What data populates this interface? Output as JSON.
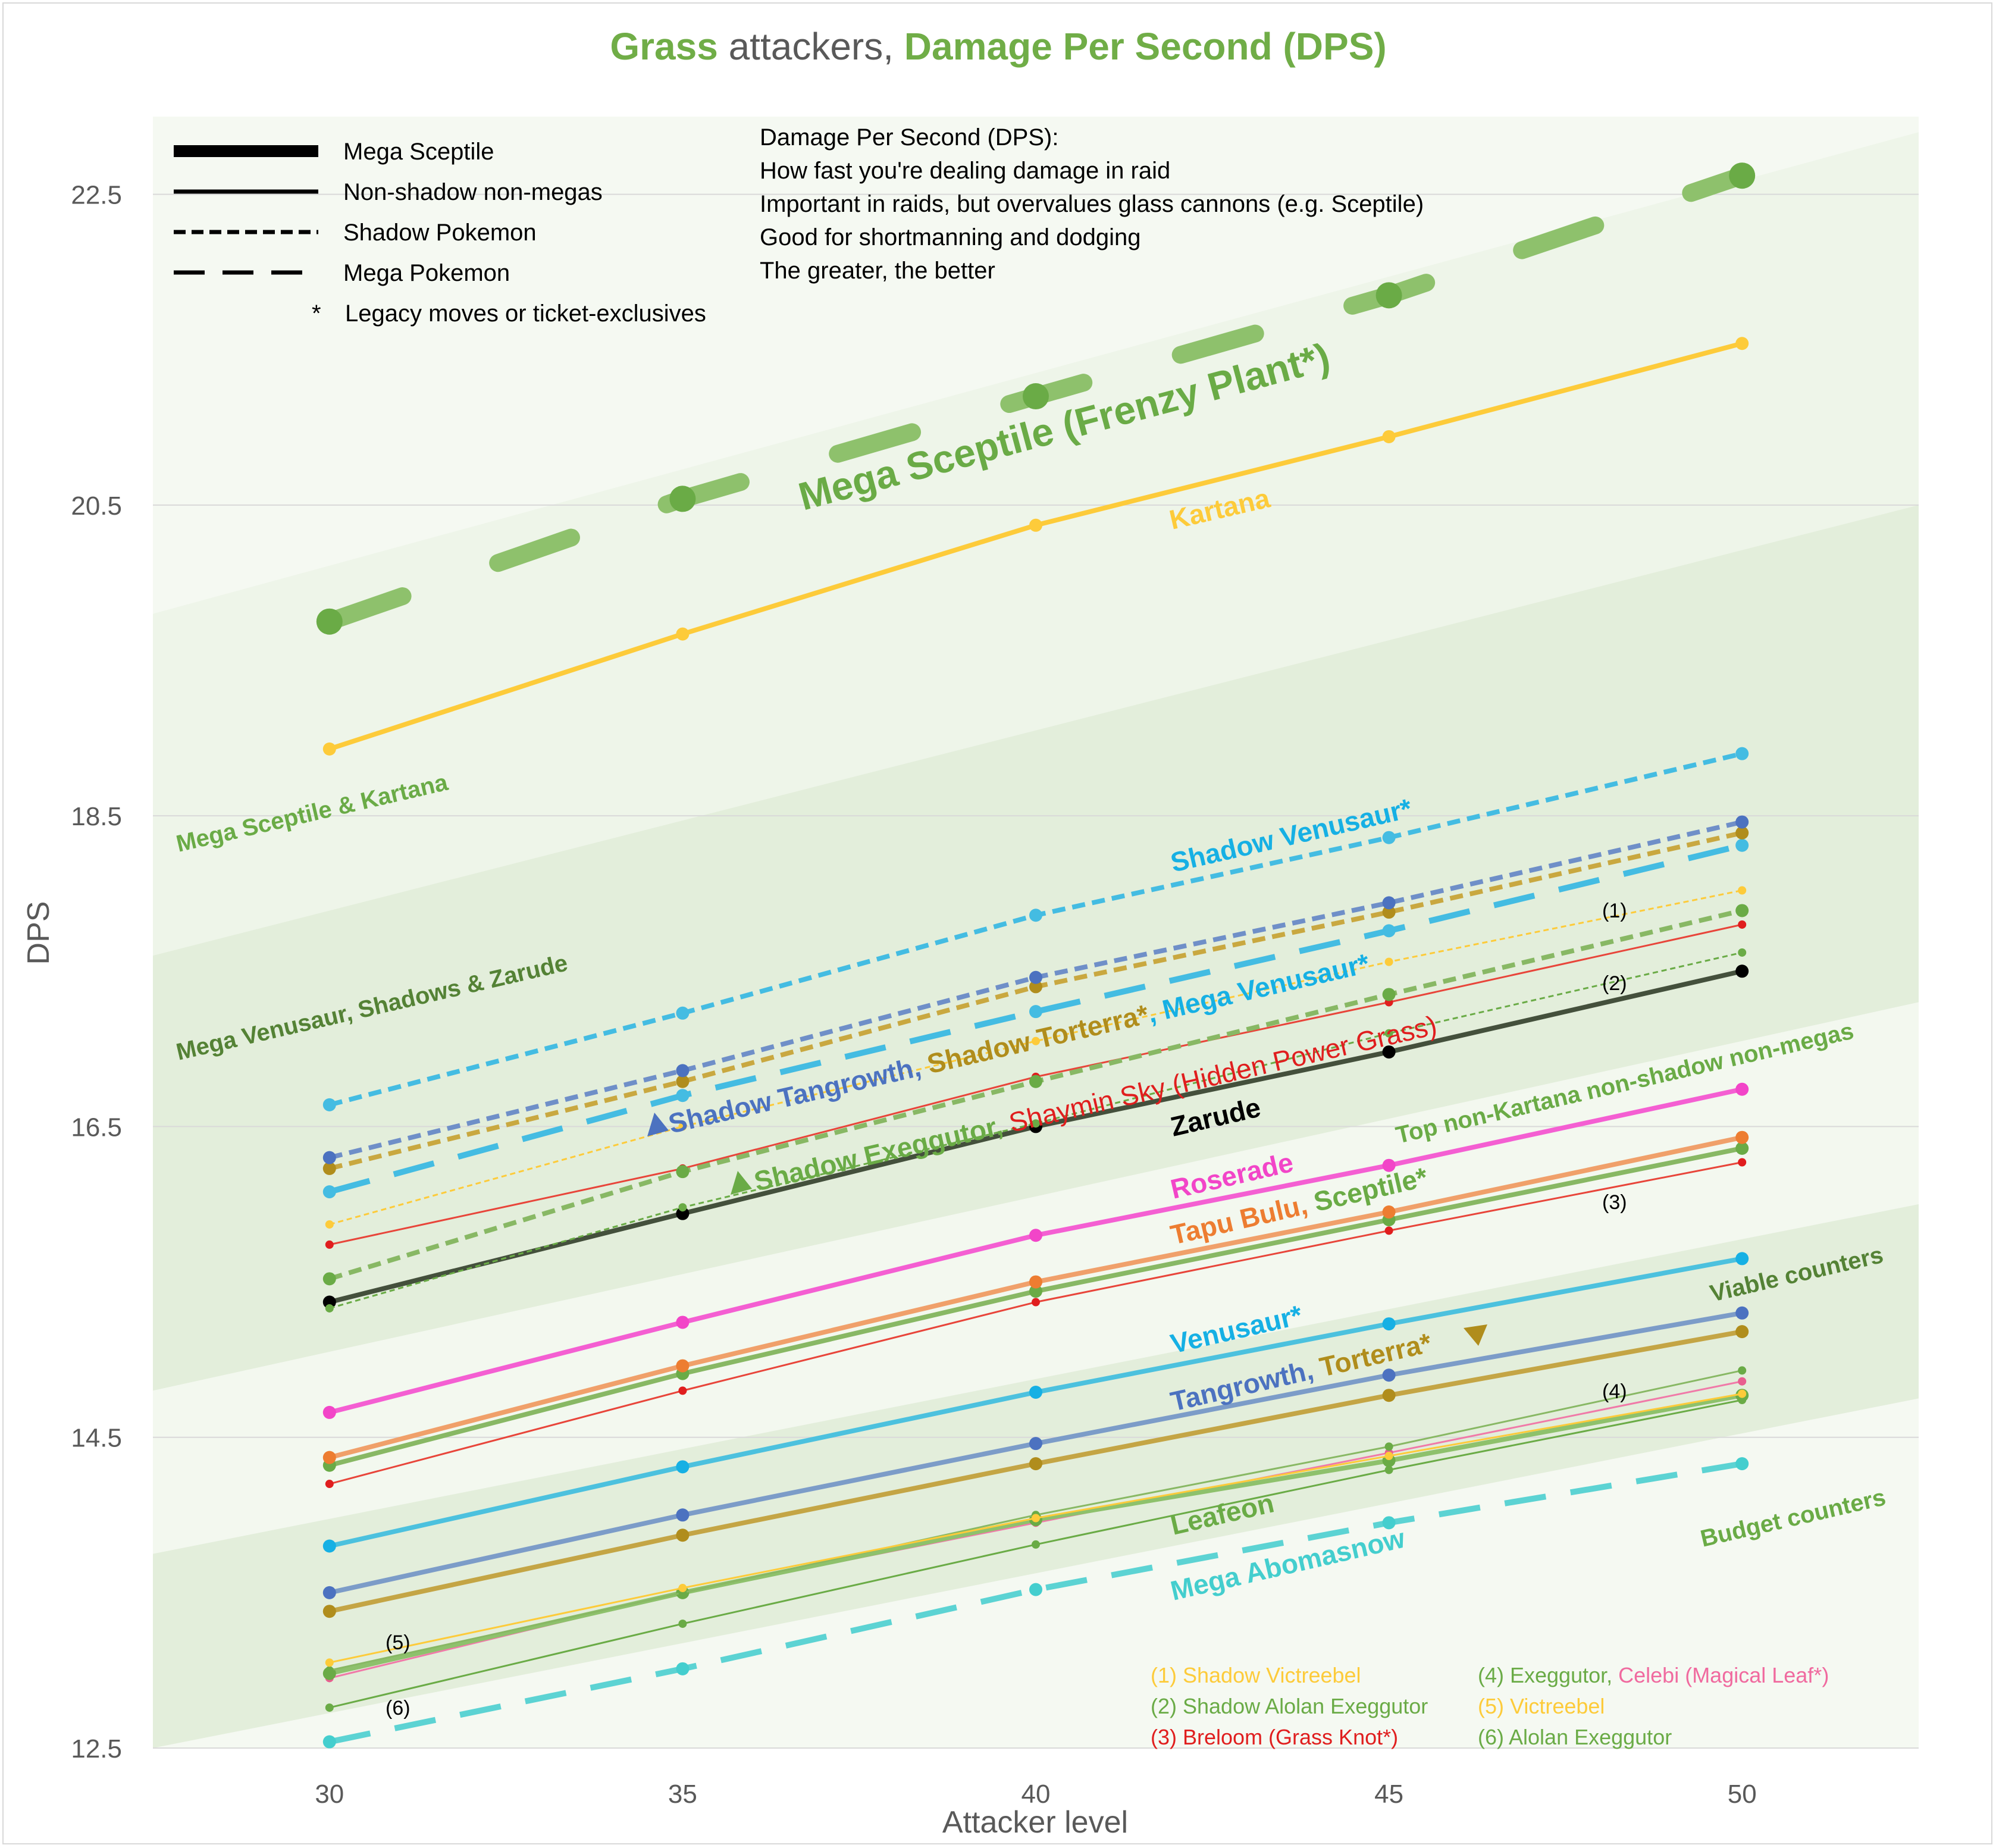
{
  "chart_data": {
    "type": "line",
    "title": {
      "part1": "Grass",
      "part2": " attackers, ",
      "part3": "Damage Per Second (DPS)"
    },
    "xlabel": "Attacker level",
    "ylabel": "DPS",
    "x": [
      30,
      35,
      40,
      45,
      50
    ],
    "xticks": [
      "30",
      "35",
      "40",
      "45",
      "50"
    ],
    "xlim": [
      27.5,
      52.5
    ],
    "ylim": [
      12.5,
      23.0
    ],
    "yticks": [
      "12.5",
      "14.5",
      "16.5",
      "18.5",
      "20.5",
      "22.5"
    ],
    "ytick_values": [
      12.5,
      14.5,
      16.5,
      18.5,
      20.5,
      22.5
    ],
    "bands": [
      {
        "name": "Mega Sceptile & Kartana",
        "poly": [
          [
            27.5,
            19.8
          ],
          [
            52.5,
            22.9
          ],
          [
            52.5,
            20.5
          ],
          [
            27.5,
            17.6
          ]
        ],
        "color": "#eef5e9"
      },
      {
        "name": "Mega Venusaur, Shadows & Zarude",
        "poly": [
          [
            27.5,
            17.6
          ],
          [
            52.5,
            20.5
          ],
          [
            52.5,
            17.3
          ],
          [
            27.5,
            14.8
          ]
        ],
        "color": "#e3eedb"
      },
      {
        "name": "Top non-Kartana non-shadow non-megas",
        "poly": [
          [
            27.5,
            14.8
          ],
          [
            52.5,
            17.3
          ],
          [
            52.5,
            16.0
          ],
          [
            27.5,
            13.75
          ]
        ],
        "color": "#f3f8ef"
      },
      {
        "name": "Viable counters",
        "poly": [
          [
            27.5,
            13.75
          ],
          [
            52.5,
            16.0
          ],
          [
            52.5,
            14.75
          ],
          [
            27.5,
            12.5
          ]
        ],
        "color": "#e3eedb"
      }
    ],
    "series": [
      {
        "name": "Mega Sceptile (Frenzy Plant*)",
        "values": [
          19.75,
          20.54,
          21.2,
          21.85,
          22.62
        ],
        "color": "#8ec16c",
        "dotColor": "#6aab46",
        "style": "megathick"
      },
      {
        "name": "Kartana",
        "values": [
          18.93,
          19.67,
          20.37,
          20.94,
          21.54
        ],
        "color": "#fdcb3a",
        "style": "solid"
      },
      {
        "name": "Shadow Venusaur*",
        "values": [
          16.64,
          17.23,
          17.86,
          18.36,
          18.9
        ],
        "color": "#44bce2",
        "style": "short"
      },
      {
        "name": "Shadow Tangrowth",
        "values": [
          16.3,
          16.86,
          17.46,
          17.94,
          18.46
        ],
        "color": "#6f8fc8",
        "dotColor": "#4c72c0",
        "style": "short"
      },
      {
        "name": "Shadow Torterra*",
        "values": [
          16.23,
          16.79,
          17.4,
          17.88,
          18.39
        ],
        "color": "#c9a840",
        "dotColor": "#b08d1c",
        "style": "short"
      },
      {
        "name": "Mega Venusaur*",
        "values": [
          16.08,
          16.7,
          17.24,
          17.76,
          18.31
        ],
        "color": "#44bce2",
        "style": "mega"
      },
      {
        "name": "Shadow Victreebel",
        "values": [
          15.87,
          16.5,
          17.05,
          17.56,
          18.02
        ],
        "color": "#fdcb3a",
        "style": "thinshort"
      },
      {
        "name": "Shadow Exeggutor",
        "values": [
          15.52,
          16.21,
          16.79,
          17.35,
          17.89
        ],
        "color": "#88b864",
        "dotColor": "#6aab46",
        "style": "short"
      },
      {
        "name": "Shaymin Sky (Hidden Power Grass)",
        "values": [
          15.74,
          16.23,
          16.82,
          17.3,
          17.8
        ],
        "color": "#e8453a",
        "dotColor": "#e01e1e",
        "style": "thin"
      },
      {
        "name": "Shadow Alolan Exeggutor",
        "values": [
          15.33,
          15.98,
          16.52,
          17.1,
          17.62
        ],
        "color": "#6aab46",
        "style": "thinshort"
      },
      {
        "name": "Zarude",
        "values": [
          15.37,
          15.94,
          16.5,
          16.98,
          17.5
        ],
        "color": "#44503c",
        "dotColor": "#000000",
        "style": "solid"
      },
      {
        "name": "Roserade",
        "values": [
          14.66,
          15.24,
          15.8,
          16.25,
          16.74
        ],
        "color": "#f45fd2",
        "dotColor": "#f245c8",
        "style": "solid"
      },
      {
        "name": "Tapu Bulu",
        "values": [
          14.37,
          14.96,
          15.5,
          15.95,
          16.43
        ],
        "color": "#f0a06a",
        "dotColor": "#ed7d31",
        "style": "solid"
      },
      {
        "name": "Sceptile*",
        "values": [
          14.32,
          14.91,
          15.44,
          15.9,
          16.36
        ],
        "color": "#88b864",
        "dotColor": "#6aab46",
        "style": "solid"
      },
      {
        "name": "Breloom (Grass Knot*)",
        "values": [
          14.2,
          14.8,
          15.37,
          15.83,
          16.27
        ],
        "color": "#e8453a",
        "dotColor": "#e01e1e",
        "style": "thin"
      },
      {
        "name": "Venusaur*",
        "values": [
          13.8,
          14.31,
          14.79,
          15.23,
          15.65
        ],
        "color": "#4cc1de",
        "dotColor": "#16b0e4",
        "style": "solid"
      },
      {
        "name": "Tangrowth",
        "values": [
          13.5,
          14.0,
          14.46,
          14.9,
          15.3
        ],
        "color": "#7c9cc8",
        "dotColor": "#4c72c0",
        "style": "solid"
      },
      {
        "name": "Torterra*",
        "values": [
          13.38,
          13.87,
          14.33,
          14.77,
          15.18
        ],
        "color": "#c4a545",
        "dotColor": "#b08d1c",
        "style": "solid"
      },
      {
        "name": "Victreebel",
        "values": [
          13.05,
          13.53,
          13.98,
          14.38,
          14.78
        ],
        "color": "#fdcb3a",
        "style": "thin"
      },
      {
        "name": "Exeggutor",
        "values": [
          13.0,
          13.5,
          14.0,
          14.44,
          14.93
        ],
        "color": "#88b864",
        "dotColor": "#6aab46",
        "style": "thin"
      },
      {
        "name": "Leafeon",
        "values": [
          12.98,
          13.5,
          13.97,
          14.35,
          14.77
        ],
        "color": "#8ec16c",
        "dotColor": "#6aab46",
        "style": "solid"
      },
      {
        "name": "Celebi (Magical Leaf*)",
        "values": [
          12.95,
          13.5,
          13.95,
          14.4,
          14.86
        ],
        "color": "#f07aa8",
        "dotColor": "#e85f8f",
        "style": "thin"
      },
      {
        "name": "Alolan Exeggutor",
        "values": [
          12.76,
          13.3,
          13.81,
          14.29,
          14.74
        ],
        "color": "#6aab46",
        "style": "thin"
      },
      {
        "name": "Mega Abomasnow",
        "values": [
          12.54,
          13.01,
          13.52,
          13.95,
          14.33
        ],
        "color": "#5cd3d3",
        "dotColor": "#44cece",
        "style": "mega"
      }
    ],
    "legend": [
      {
        "label": "Mega Sceptile",
        "style": "thick"
      },
      {
        "label": "Non-shadow non-megas",
        "style": "solid"
      },
      {
        "label": "Shadow Pokemon",
        "style": "short"
      },
      {
        "label": "Mega Pokemon",
        "style": "mega"
      },
      {
        "label": "Legacy moves or ticket-exclusives",
        "marker": "*"
      }
    ],
    "info": [
      "Damage Per Second (DPS):",
      "How fast you're dealing damage in raid",
      "Important in raids, but overvalues glass cannons (e.g. Sceptile)",
      "Good for shortmanning and dodging",
      "The greater, the better"
    ],
    "annotations": {
      "mega_sceptile": "Mega Sceptile (Frenzy Plant*)",
      "kartana": "Kartana",
      "shadow_venusaur": "Shadow Venusaur*",
      "mid_line1": {
        "a": "Shadow Tangrowth",
        "b": ", ",
        "c": "Shadow Torterra*",
        "d": ", ",
        "e": "Mega Venusaur*"
      },
      "mid_line2": {
        "a": "Shadow Exeggutor",
        "b": ", ",
        "c": "Shaymin Sky (Hidden Power Grass)"
      },
      "zarude": "Zarude",
      "roserade": "Roserade",
      "tapu_sceptile": {
        "a": "Tapu Bulu",
        "b": ", ",
        "c": "Sceptile*"
      },
      "venusaur": "Venusaur*",
      "tangrowth_torterra": {
        "a": "Tangrowth",
        "b": ", ",
        "c": "Torterra*"
      },
      "leafeon": "Leafeon",
      "mega_abomasnow": "Mega Abomasnow",
      "band_labels": [
        "Mega Sceptile & Kartana",
        "Mega Venusaur, Shadows & Zarude",
        "Top non-Kartana non-shadow non-megas",
        "Viable counters",
        "Budget counters"
      ],
      "markers": [
        "(1)",
        "(2)",
        "(3)",
        "(4)",
        "(5)",
        "(6)"
      ]
    },
    "footnotes": [
      {
        "parts": [
          {
            "text": "(1) Shadow Victreebel",
            "color": "#fdcb3a"
          }
        ]
      },
      {
        "parts": [
          {
            "text": "(2) Shadow Alolan Exeggutor",
            "color": "#6aab46"
          }
        ]
      },
      {
        "parts": [
          {
            "text": "(3) Breloom (Grass Knot*)",
            "color": "#e01e1e"
          }
        ]
      },
      {
        "parts": [
          {
            "text": "(4) Exeggutor, ",
            "color": "#6aab46"
          },
          {
            "text": "Celebi (Magical Leaf*)",
            "color": "#f06a9f"
          }
        ]
      },
      {
        "parts": [
          {
            "text": "(5) Victreebel",
            "color": "#fdcb3a"
          }
        ]
      },
      {
        "parts": [
          {
            "text": "(6) Alolan Exeggutor",
            "color": "#6aab46"
          }
        ]
      }
    ],
    "colors": {
      "accent": "#70ad47",
      "title_grey": "#595959",
      "axis_text": "#595959",
      "grid": "#d9d9d9",
      "dark_green": "#548235",
      "kartana": "#fdcb3a",
      "blue": "#16b0e4",
      "indigo": "#4c72c0",
      "gold": "#b08d1c",
      "red": "#e01e1e",
      "pink": "#f245c8",
      "orange": "#ed7d31",
      "teal": "#44cece"
    }
  }
}
